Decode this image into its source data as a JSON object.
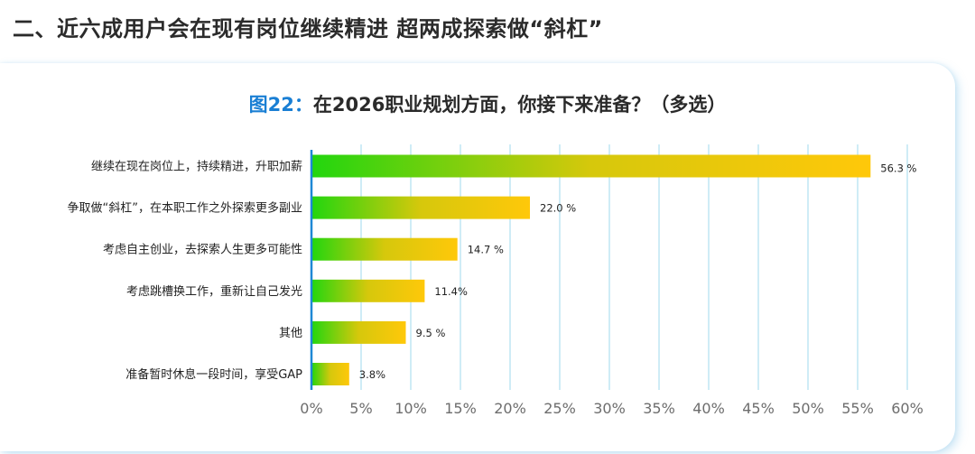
{
  "heading": "二、近六成用户会在现有岗位继续精进  超两成探索做“斜杠”",
  "chart_title": {
    "figure_label": "图22：",
    "text": "在2026职业规划方面，你接下来准备？（多选）"
  },
  "colors": {
    "bar_start": "#22d60e",
    "bar_mid": "#d6c80c",
    "bar_end": "#ffc80a",
    "axis": "#1e88d6",
    "grid": "#9fd8ee",
    "title_accent": "#1a7fd4"
  },
  "chart_data": {
    "type": "bar",
    "orientation": "horizontal",
    "title": "图22：在2026职业规划方面，你接下来准备？（多选）",
    "categories": [
      "继续在现在岗位上，持续精进，升职加薪",
      "争取做“斜杠”，在本职工作之外探索更多副业",
      "考虑自主创业，去探索人生更多可能性",
      "考虑跳槽换工作，重新让自己发光",
      "其他",
      "准备暂时休息一段时间，享受GAP"
    ],
    "values": [
      56.3,
      22.0,
      14.7,
      11.4,
      9.5,
      3.8
    ],
    "value_labels": [
      "56.3 %",
      "22.0 %",
      "14.7 %",
      "11.4%",
      "9.5 %",
      "3.8%"
    ],
    "xlim": [
      0,
      60
    ],
    "xticks": [
      0,
      5,
      10,
      15,
      20,
      25,
      30,
      35,
      40,
      45,
      50,
      55,
      60
    ],
    "xtick_labels": [
      "0%",
      "5%",
      "10%",
      "15%",
      "20%",
      "25%",
      "30%",
      "35%",
      "40%",
      "45%",
      "50%",
      "55%",
      "60%"
    ],
    "grid": true
  }
}
